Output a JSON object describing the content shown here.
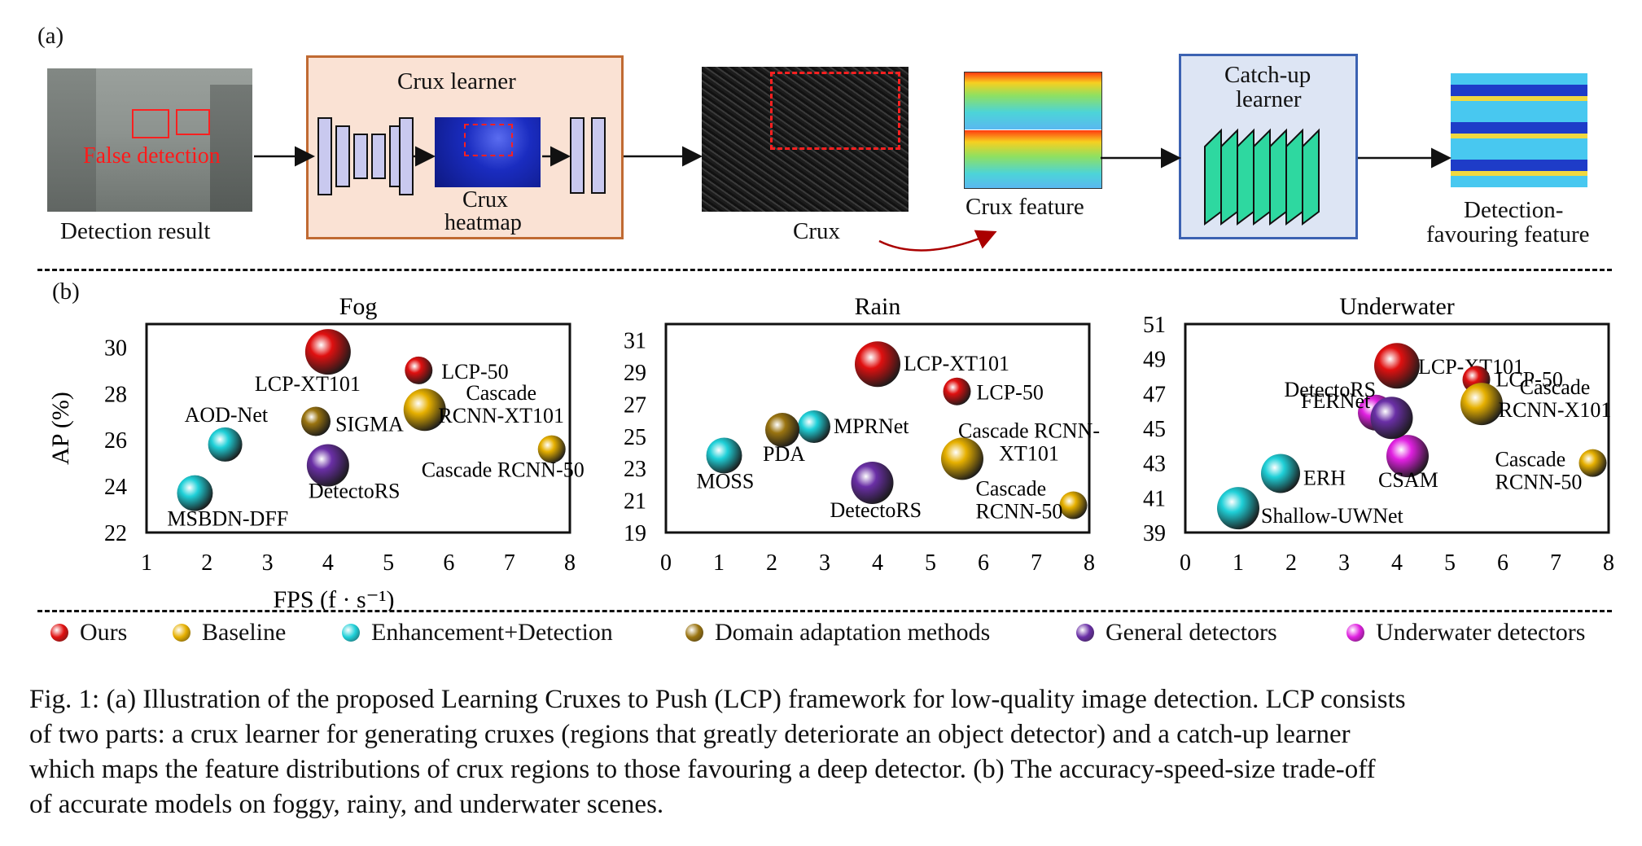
{
  "panel_a": {
    "label": "(a)",
    "detection_result": "Detection result",
    "false_detection": "False detection",
    "crux_learner": "Crux learner",
    "crux_heatmap_1": "Crux",
    "crux_heatmap_2": "heatmap",
    "crux": "Crux",
    "crux_feature": "Crux feature",
    "catchup_1": "Catch-up",
    "catchup_2": "learner",
    "detection_feat_1": "Detection-",
    "detection_feat_2": "favouring feature"
  },
  "panel_b": {
    "label": "(b)"
  },
  "legend": [
    {
      "label": "Ours",
      "color": "#e01010"
    },
    {
      "label": "Baseline",
      "color": "#e6b000"
    },
    {
      "label": "Enhancement+Detection",
      "color": "#1fd0d8"
    },
    {
      "label": "Domain adaptation methods",
      "color": "#9a7410"
    },
    {
      "label": "General detectors",
      "color": "#6a2fa6"
    },
    {
      "label": "Underwater detectors",
      "color": "#e020e0"
    }
  ],
  "caption": [
    "Fig. 1: (a) Illustration of the proposed Learning Cruxes to Push (LCP) framework for low-quality image detection. LCP consists",
    "of two parts: a crux learner for generating cruxes (regions that greatly deteriorate an object detector) and a catch-up learner",
    "which maps the feature distributions of crux regions to those favouring a deep detector. (b) The accuracy-speed-size trade-off",
    "of accurate models on foggy, rainy, and underwater scenes."
  ],
  "chart_data": [
    {
      "type": "scatter",
      "title": "Fog",
      "xlabel": "FPS (f · s⁻¹)",
      "ylabel": "AP (%)",
      "xlim": [
        1,
        8
      ],
      "ylim": [
        22,
        31
      ],
      "xticks": [
        1,
        2,
        3,
        4,
        5,
        6,
        7,
        8
      ],
      "yticks": [
        22,
        24,
        26,
        28,
        30
      ],
      "points": [
        {
          "name": "LCP-XT101",
          "x": 4.0,
          "y": 29.8,
          "group": "Ours",
          "size": 44
        },
        {
          "name": "LCP-50",
          "x": 5.5,
          "y": 29.0,
          "group": "Ours",
          "size": 22
        },
        {
          "name": "Cascade RCNN-XT101",
          "x": 5.6,
          "y": 27.3,
          "group": "Baseline",
          "size": 40
        },
        {
          "name": "Cascade RCNN-50",
          "x": 7.7,
          "y": 25.6,
          "group": "Baseline",
          "size": 22
        },
        {
          "name": "AOD-Net",
          "x": 2.3,
          "y": 25.8,
          "group": "Enhancement+Detection",
          "size": 30
        },
        {
          "name": "MSBDN-DFF",
          "x": 1.8,
          "y": 23.7,
          "group": "Enhancement+Detection",
          "size": 32
        },
        {
          "name": "SIGMA",
          "x": 3.8,
          "y": 26.8,
          "group": "Domain adaptation methods",
          "size": 24
        },
        {
          "name": "DetectoRS",
          "x": 4.0,
          "y": 24.9,
          "group": "General detectors",
          "size": 40
        }
      ]
    },
    {
      "type": "scatter",
      "title": "Rain",
      "xlabel": "",
      "ylabel": "",
      "xlim": [
        0,
        8
      ],
      "ylim": [
        19,
        32
      ],
      "xticks": [
        0,
        1,
        2,
        3,
        4,
        5,
        6,
        7,
        8
      ],
      "yticks": [
        19,
        21,
        23,
        25,
        27,
        29,
        31
      ],
      "points": [
        {
          "name": "LCP-XT101",
          "x": 4.0,
          "y": 29.5,
          "group": "Ours",
          "size": 44
        },
        {
          "name": "LCP-50",
          "x": 5.5,
          "y": 27.8,
          "group": "Ours",
          "size": 22
        },
        {
          "name": "Cascade RCNN-XT101",
          "x": 5.6,
          "y": 23.6,
          "group": "Baseline",
          "size": 40
        },
        {
          "name": "Cascade RCNN-50",
          "x": 7.7,
          "y": 20.7,
          "group": "Baseline",
          "size": 22
        },
        {
          "name": "MOSS",
          "x": 1.1,
          "y": 23.8,
          "group": "Enhancement+Detection",
          "size": 32
        },
        {
          "name": "MPRNet",
          "x": 2.8,
          "y": 25.6,
          "group": "Enhancement+Detection",
          "size": 28
        },
        {
          "name": "PDA",
          "x": 2.2,
          "y": 25.4,
          "group": "Domain adaptation methods",
          "size": 30
        },
        {
          "name": "DetectoRS",
          "x": 3.9,
          "y": 22.1,
          "group": "General detectors",
          "size": 40
        }
      ]
    },
    {
      "type": "scatter",
      "title": "Underwater",
      "xlabel": "",
      "ylabel": "",
      "xlim": [
        0,
        8
      ],
      "ylim": [
        39,
        51
      ],
      "xticks": [
        0,
        1,
        2,
        3,
        4,
        5,
        6,
        7,
        8
      ],
      "yticks": [
        39,
        41,
        43,
        45,
        47,
        49,
        51
      ],
      "points": [
        {
          "name": "LCP-XT101",
          "x": 4.0,
          "y": 48.6,
          "group": "Ours",
          "size": 44
        },
        {
          "name": "LCP-50",
          "x": 5.5,
          "y": 47.8,
          "group": "Ours",
          "size": 22
        },
        {
          "name": "Cascade RCNN-X101",
          "x": 5.6,
          "y": 46.4,
          "group": "Baseline",
          "size": 40
        },
        {
          "name": "Cascade RCNN-50",
          "x": 7.7,
          "y": 43.0,
          "group": "Baseline",
          "size": 22
        },
        {
          "name": "ERH",
          "x": 1.8,
          "y": 42.4,
          "group": "Enhancement+Detection",
          "size": 36
        },
        {
          "name": "Shallow-UWNet",
          "x": 1.0,
          "y": 40.4,
          "group": "Enhancement+Detection",
          "size": 40
        },
        {
          "name": "FERNet",
          "x": 3.6,
          "y": 45.9,
          "group": "Underwater detectors",
          "size": 32
        },
        {
          "name": "CSAM",
          "x": 4.2,
          "y": 43.4,
          "group": "Underwater detectors",
          "size": 40
        },
        {
          "name": "DetectoRS",
          "x": 3.9,
          "y": 45.6,
          "group": "General detectors",
          "size": 40
        }
      ]
    }
  ]
}
